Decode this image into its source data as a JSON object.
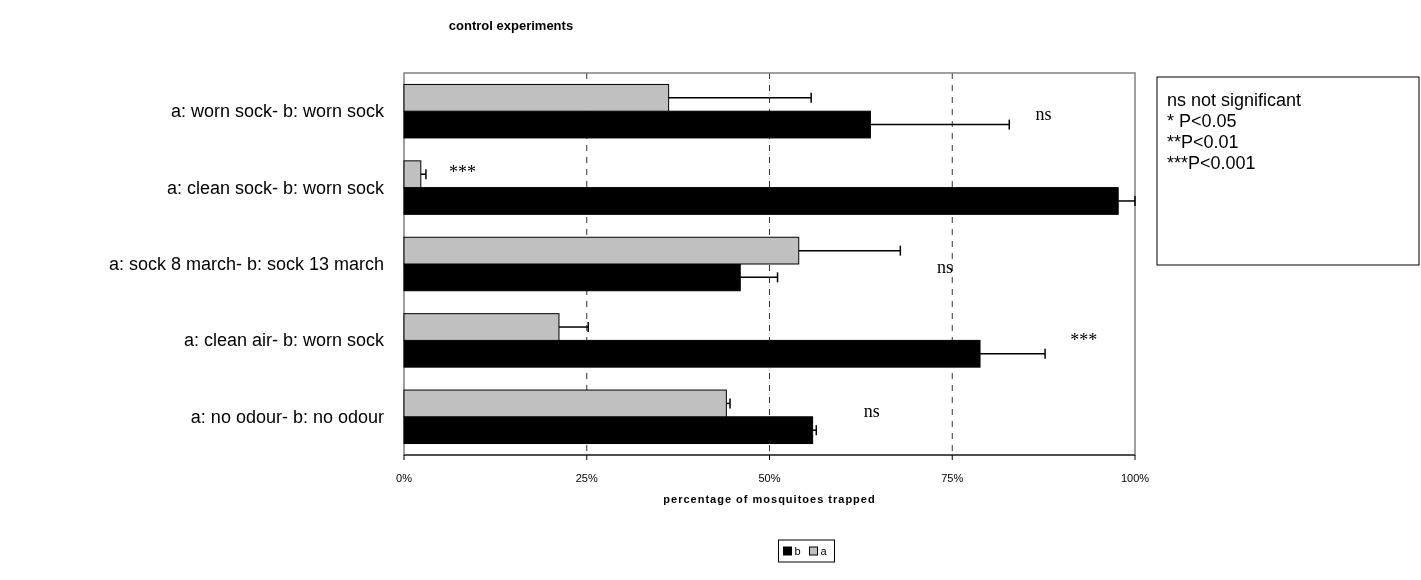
{
  "chart_data": {
    "type": "bar",
    "orientation": "horizontal",
    "title": "control experiments",
    "xlabel": "percentage of mosquitoes trapped",
    "categories": [
      "a: worn sock- b: worn sock",
      "a: clean sock- b: worn sock",
      "a: sock 8 march- b: sock 13 march",
      "a: clean air- b: worn sock",
      "a: no odour- b: no odour"
    ],
    "series": [
      {
        "name": "b",
        "color": "#000000",
        "values": [
          63.8,
          97.7,
          46.0,
          78.8,
          55.9
        ],
        "errors": [
          19,
          2.3,
          5.1,
          8.9,
          0.5
        ]
      },
      {
        "name": "a",
        "color": "#c0c0c0",
        "values": [
          36.2,
          2.3,
          54.0,
          21.2,
          44.1
        ],
        "errors": [
          19.5,
          0.7,
          13.9,
          4,
          0.5
        ]
      }
    ],
    "xlim": [
      0,
      100
    ],
    "xticks": [
      {
        "value": 0,
        "label": "0%"
      },
      {
        "value": 25,
        "label": "25%"
      },
      {
        "value": 50,
        "label": "50%"
      },
      {
        "value": 75,
        "label": "75%"
      },
      {
        "value": 100,
        "label": "100%"
      }
    ],
    "grid": "x",
    "legend": "bottom",
    "annotations": [
      "ns",
      "***",
      "ns",
      "***",
      "ns",
      "ns not significant",
      "* P<0.05",
      "**P<0.01",
      "***P<0.001"
    ]
  }
}
